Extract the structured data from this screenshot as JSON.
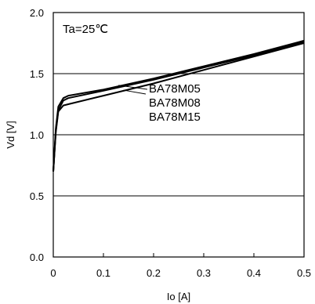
{
  "chart_data": {
    "type": "line",
    "annotation": "Ta=25℃",
    "xlabel": "Io [A]",
    "ylabel": "Vd [V]",
    "xlim": [
      0,
      0.5
    ],
    "ylim": [
      0,
      2.0
    ],
    "x_ticks": [
      "0",
      "0.1",
      "0.2",
      "0.3",
      "0.4",
      "0.5"
    ],
    "y_ticks": [
      "0.0",
      "0.5",
      "1.0",
      "1.5",
      "2.0"
    ],
    "grid": "horizontal",
    "legend": "inline-labels",
    "series": [
      {
        "name": "BA78M05",
        "points": [
          [
            0,
            0.7
          ],
          [
            0.005,
            1.05
          ],
          [
            0.01,
            1.23
          ],
          [
            0.02,
            1.3
          ],
          [
            0.03,
            1.32
          ],
          [
            0.1,
            1.37
          ],
          [
            0.2,
            1.46
          ],
          [
            0.3,
            1.56
          ],
          [
            0.4,
            1.66
          ],
          [
            0.5,
            1.77
          ]
        ]
      },
      {
        "name": "BA78M08",
        "points": [
          [
            0,
            0.7
          ],
          [
            0.005,
            1.03
          ],
          [
            0.01,
            1.2
          ],
          [
            0.02,
            1.28
          ],
          [
            0.03,
            1.3
          ],
          [
            0.1,
            1.36
          ],
          [
            0.2,
            1.45
          ],
          [
            0.3,
            1.55
          ],
          [
            0.4,
            1.65
          ],
          [
            0.5,
            1.76
          ]
        ]
      },
      {
        "name": "BA78M15",
        "points": [
          [
            0,
            0.7
          ],
          [
            0.005,
            1.02
          ],
          [
            0.01,
            1.19
          ],
          [
            0.02,
            1.24
          ],
          [
            0.03,
            1.25
          ],
          [
            0.1,
            1.32
          ],
          [
            0.2,
            1.42
          ],
          [
            0.3,
            1.53
          ],
          [
            0.4,
            1.64
          ],
          [
            0.5,
            1.75
          ]
        ]
      }
    ]
  }
}
